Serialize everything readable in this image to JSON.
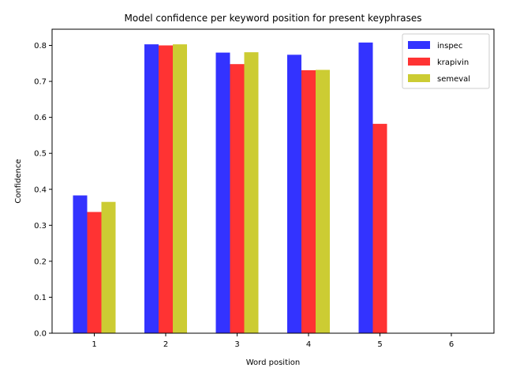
{
  "chart_data": {
    "type": "bar",
    "title": "Model confidence per keyword position for present keyphrases",
    "xlabel": "Word position",
    "ylabel": "Confidence",
    "categories": [
      "1",
      "2",
      "3",
      "4",
      "5",
      "6"
    ],
    "ylim": [
      0,
      0.845
    ],
    "yticks": [
      "0.0",
      "0.1",
      "0.2",
      "0.3",
      "0.4",
      "0.5",
      "0.6",
      "0.7",
      "0.8"
    ],
    "legend_position": "top-right",
    "grid": false,
    "series": [
      {
        "name": "inspec",
        "color": "#3333ff",
        "values": [
          0.383,
          0.803,
          0.78,
          0.774,
          0.808,
          0
        ]
      },
      {
        "name": "krapivin",
        "color": "#ff3333",
        "values": [
          0.337,
          0.8,
          0.748,
          0.731,
          0.582,
          0
        ]
      },
      {
        "name": "semeval",
        "color": "#cccc33",
        "values": [
          0.365,
          0.803,
          0.781,
          0.732,
          0,
          0
        ]
      }
    ]
  }
}
